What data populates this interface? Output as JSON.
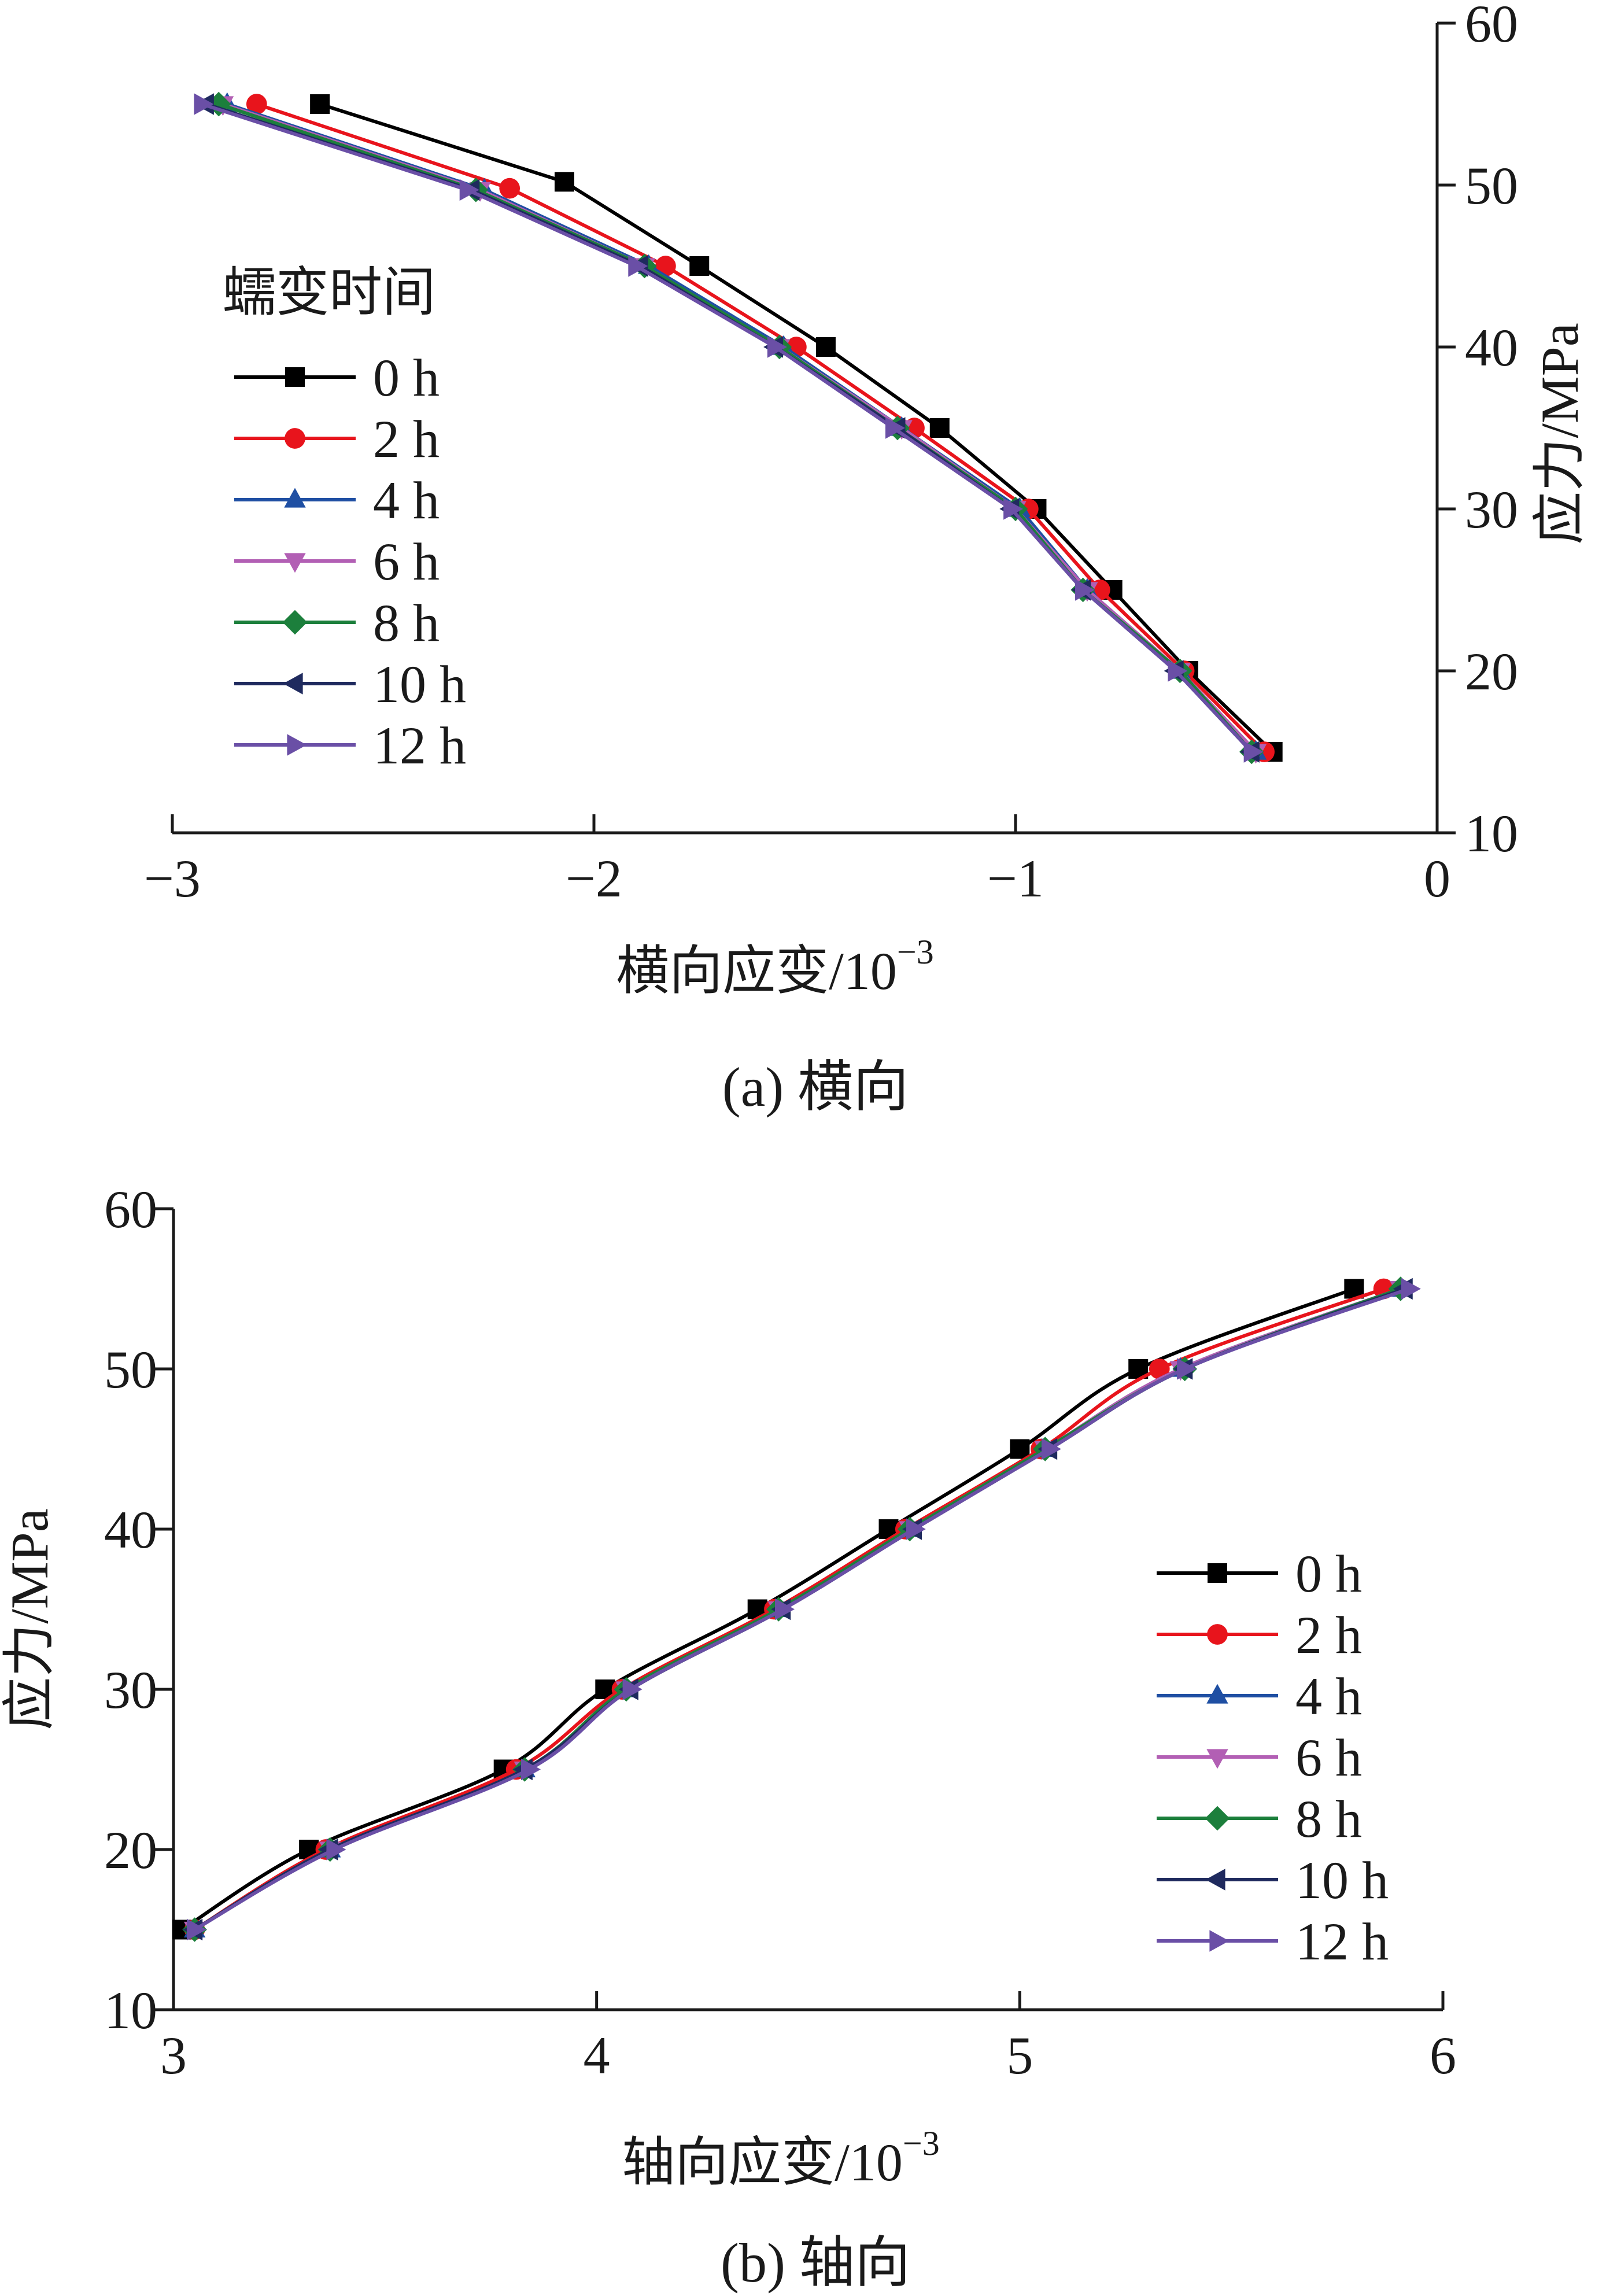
{
  "colors": {
    "0 h": "#000000",
    "2 h": "#e8141c",
    "4 h": "#1f4fa3",
    "6 h": "#b25fb4",
    "8 h": "#1c7f3c",
    "10 h": "#1f2a5e",
    "12 h": "#6a4fa6"
  },
  "markers": {
    "0 h": "square",
    "2 h": "circle",
    "4 h": "triangle-up",
    "6 h": "triangle-down",
    "8 h": "diamond",
    "10 h": "triangle-left",
    "12 h": "triangle-right"
  },
  "chart_data": [
    {
      "type": "line",
      "caption": "(a) 横向",
      "xlabel": "横向应变/10",
      "xlabel_exp": "−3",
      "ylabel": "应力/MPa",
      "xlim": [
        -3,
        0
      ],
      "ylim": [
        10,
        60
      ],
      "xticks": [
        -3,
        -2,
        -1,
        0
      ],
      "xtick_labels": [
        "−3",
        "−2",
        "−1",
        "0"
      ],
      "yticks": [
        10,
        20,
        30,
        40,
        50,
        60
      ],
      "ytick_labels": [
        "10",
        "20",
        "30",
        "40",
        "50",
        "60"
      ],
      "y_axis_side": "right",
      "legend_title": "蠕变时间",
      "legend_position": "middle-left",
      "grid": false,
      "series": [
        {
          "name": "0 h",
          "x": [
            -0.39,
            -0.59,
            -0.77,
            -0.95,
            -1.18,
            -1.45,
            -1.75,
            -2.07,
            -2.65
          ],
          "y": [
            15,
            20,
            25,
            30,
            35,
            40,
            45,
            50.2,
            55
          ]
        },
        {
          "name": "2 h",
          "x": [
            -0.41,
            -0.6,
            -0.8,
            -0.97,
            -1.24,
            -1.52,
            -1.83,
            -2.2,
            -2.8
          ],
          "y": [
            15,
            20,
            25,
            30,
            35,
            40,
            45,
            49.8,
            55
          ]
        },
        {
          "name": "4 h",
          "x": [
            -0.43,
            -0.61,
            -0.83,
            -0.99,
            -1.27,
            -1.55,
            -1.87,
            -2.26,
            -2.87
          ],
          "y": [
            15,
            20,
            25,
            30,
            35,
            40,
            45,
            49.7,
            55
          ]
        },
        {
          "name": "6 h",
          "x": [
            -0.43,
            -0.61,
            -0.83,
            -1.0,
            -1.27,
            -1.56,
            -1.88,
            -2.27,
            -2.88
          ],
          "y": [
            15,
            20,
            25,
            30,
            35,
            40,
            45,
            49.7,
            55
          ]
        },
        {
          "name": "8 h",
          "x": [
            -0.44,
            -0.61,
            -0.84,
            -1.0,
            -1.28,
            -1.56,
            -1.88,
            -2.28,
            -2.89
          ],
          "y": [
            15,
            20,
            25,
            30,
            35,
            40,
            45,
            49.7,
            55
          ]
        },
        {
          "name": "10 h",
          "x": [
            -0.44,
            -0.62,
            -0.84,
            -1.01,
            -1.28,
            -1.57,
            -1.89,
            -2.29,
            -2.92
          ],
          "y": [
            15,
            20,
            25,
            30,
            35,
            40,
            45,
            49.7,
            55
          ]
        },
        {
          "name": "12 h",
          "x": [
            -0.44,
            -0.62,
            -0.84,
            -1.01,
            -1.29,
            -1.57,
            -1.9,
            -2.3,
            -2.93
          ],
          "y": [
            15,
            20,
            25,
            30,
            35,
            40,
            45,
            49.7,
            55
          ]
        }
      ]
    },
    {
      "type": "line",
      "caption": "(b) 轴向",
      "xlabel": "轴向应变/10",
      "xlabel_exp": "−3",
      "ylabel": "应力/MPa",
      "xlim": [
        3,
        6
      ],
      "ylim": [
        10,
        60
      ],
      "xticks": [
        3,
        4,
        5,
        6
      ],
      "xtick_labels": [
        "3",
        "4",
        "5",
        "6"
      ],
      "yticks": [
        10,
        20,
        30,
        40,
        50,
        60
      ],
      "ytick_labels": [
        "10",
        "20",
        "30",
        "40",
        "50",
        "60"
      ],
      "y_axis_side": "left",
      "legend_position": "lower-right",
      "grid": false,
      "series": [
        {
          "name": "0 h",
          "x": [
            3.02,
            3.32,
            3.78,
            4.02,
            4.38,
            4.69,
            5.0,
            5.28,
            5.79
          ],
          "y": [
            15,
            20,
            25,
            30,
            35,
            40,
            45,
            50,
            55
          ]
        },
        {
          "name": "2 h",
          "x": [
            3.05,
            3.36,
            3.81,
            4.06,
            4.42,
            4.73,
            5.05,
            5.33,
            5.86
          ],
          "y": [
            15,
            20,
            25,
            30,
            35,
            40,
            45,
            50,
            55
          ]
        },
        {
          "name": "4 h",
          "x": [
            3.05,
            3.37,
            3.83,
            4.07,
            4.43,
            4.74,
            5.06,
            5.38,
            5.9
          ],
          "y": [
            15,
            20,
            25,
            30,
            35,
            40,
            45,
            50,
            55
          ]
        },
        {
          "name": "6 h",
          "x": [
            3.05,
            3.37,
            3.83,
            4.07,
            4.43,
            4.74,
            5.06,
            5.38,
            5.9
          ],
          "y": [
            15,
            20,
            25,
            30,
            35,
            40,
            45,
            50,
            55
          ]
        },
        {
          "name": "8 h",
          "x": [
            3.05,
            3.37,
            3.83,
            4.07,
            4.43,
            4.74,
            5.06,
            5.39,
            5.9
          ],
          "y": [
            15,
            20,
            25,
            30,
            35,
            40,
            45,
            50,
            55
          ]
        },
        {
          "name": "10 h",
          "x": [
            3.05,
            3.37,
            3.83,
            4.08,
            4.44,
            4.75,
            5.07,
            5.39,
            5.91
          ],
          "y": [
            15,
            20,
            25,
            30,
            35,
            40,
            45,
            50,
            55
          ]
        },
        {
          "name": "12 h",
          "x": [
            3.05,
            3.38,
            3.84,
            4.08,
            4.44,
            4.75,
            5.07,
            5.39,
            5.92
          ],
          "y": [
            15,
            20,
            25,
            30,
            35,
            40,
            45,
            50,
            55
          ]
        }
      ]
    }
  ]
}
